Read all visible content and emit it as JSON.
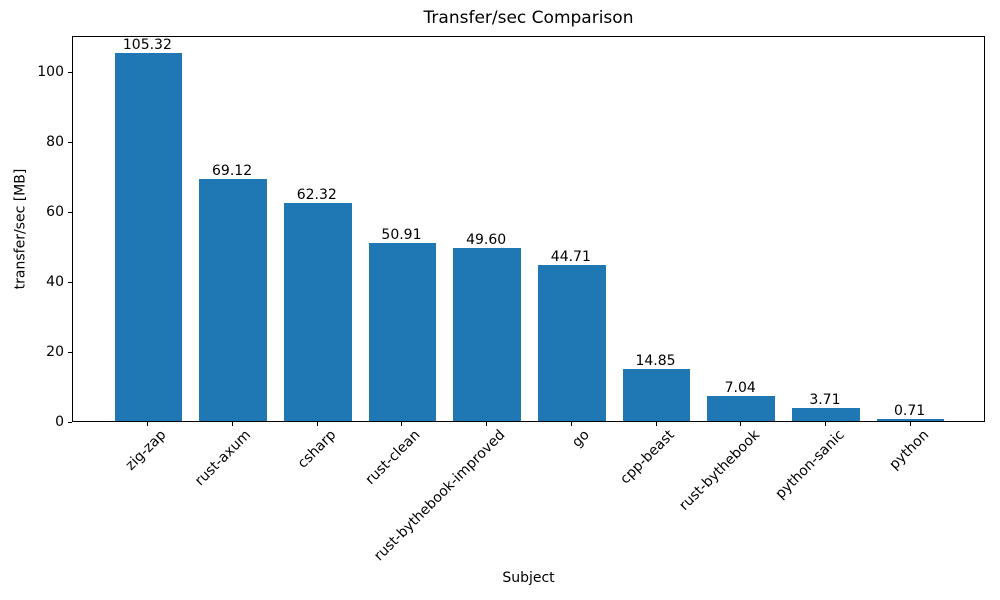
{
  "chart_data": {
    "type": "bar",
    "title": "Transfer/sec Comparison",
    "xlabel": "Subject",
    "ylabel": "transfer/sec [MB]",
    "categories": [
      "zig-zap",
      "rust-axum",
      "csharp",
      "rust-clean",
      "rust-bythebook-improved",
      "go",
      "cpp-beast",
      "rust-bythebook",
      "python-sanic",
      "python"
    ],
    "values": [
      105.32,
      69.12,
      62.32,
      50.91,
      49.6,
      44.71,
      14.85,
      7.04,
      3.71,
      0.71
    ],
    "value_labels": [
      "105.32",
      "69.12",
      "62.32",
      "50.91",
      "49.60",
      "44.71",
      "14.85",
      "7.04",
      "3.71",
      "0.71"
    ],
    "yticks": [
      0,
      20,
      40,
      60,
      80,
      100
    ],
    "ylim": [
      0,
      110.44
    ],
    "xtick_rotation_deg": 45,
    "bar_color": "#1f77b4",
    "text_color": "#000000",
    "spine_color": "#000000",
    "background_color": "#ffffff",
    "grid": false
  }
}
